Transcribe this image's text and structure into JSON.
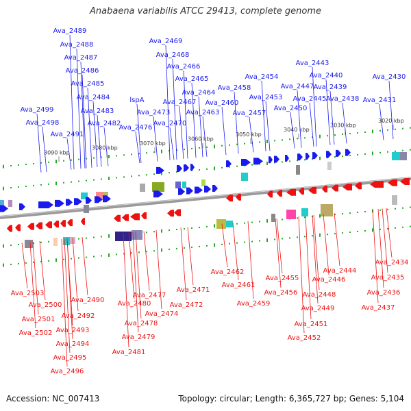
{
  "title": "Anabaena variabilis ATCC 29413, complete genome",
  "footer": {
    "accession": "Accession: NC_007413",
    "topology": "Topology: circular; Length: 6,365,727 bp; Genes: 5,104"
  },
  "colors": {
    "forward": "#1a1aee",
    "reverse": "#ee1111",
    "backbone": "#888888"
  },
  "kbp_ticks": [
    "3020 kbp",
    "3030 kbp",
    "3040 kbp",
    "3050 kbp",
    "3060 kbp",
    "3070 kbp",
    "3080 kbp",
    "3090 kbp"
  ],
  "forward_genes": [
    "Ava_2430",
    "Ava_2431",
    "Ava_2438",
    "Ava_2439",
    "Ava_2440",
    "Ava_2443",
    "Ava_2445",
    "Ava_2447",
    "Ava_2450",
    "Ava_2453",
    "Ava_2454",
    "Ava_2457",
    "Ava_2458",
    "Ava_2460",
    "Ava_2463",
    "Ava_2464",
    "Ava_2465",
    "Ava_2466",
    "Ava_2467",
    "Ava_2468",
    "Ava_2469",
    "Ava_2470",
    "Ava_2473",
    "Ava_2476",
    "lspA",
    "Ava_2482",
    "Ava_2483",
    "Ava_2484",
    "Ava_2485",
    "Ava_2486",
    "Ava_2487",
    "Ava_2488",
    "Ava_2489",
    "Ava_2491",
    "Ava_2498",
    "Ava_2499"
  ],
  "reverse_genes": [
    "Ava_2434",
    "Ava_2435",
    "Ava_2436",
    "Ava_2437",
    "Ava_2444",
    "Ava_2446",
    "Ava_2448",
    "Ava_2449",
    "Ava_2451",
    "Ava_2452",
    "Ava_2455",
    "Ava_2456",
    "Ava_2459",
    "Ava_2461",
    "Ava_2462",
    "Ava_2471",
    "Ava_2472",
    "Ava_2474",
    "Ava_2477",
    "Ava_2478",
    "Ava_2479",
    "Ava_2480",
    "Ava_2481",
    "Ava_2490",
    "Ava_2492",
    "Ava_2493",
    "Ava_2494",
    "Ava_2495",
    "Ava_2496",
    "Ava_2500",
    "Ava_2501",
    "Ava_2502",
    "Ava_2503"
  ]
}
